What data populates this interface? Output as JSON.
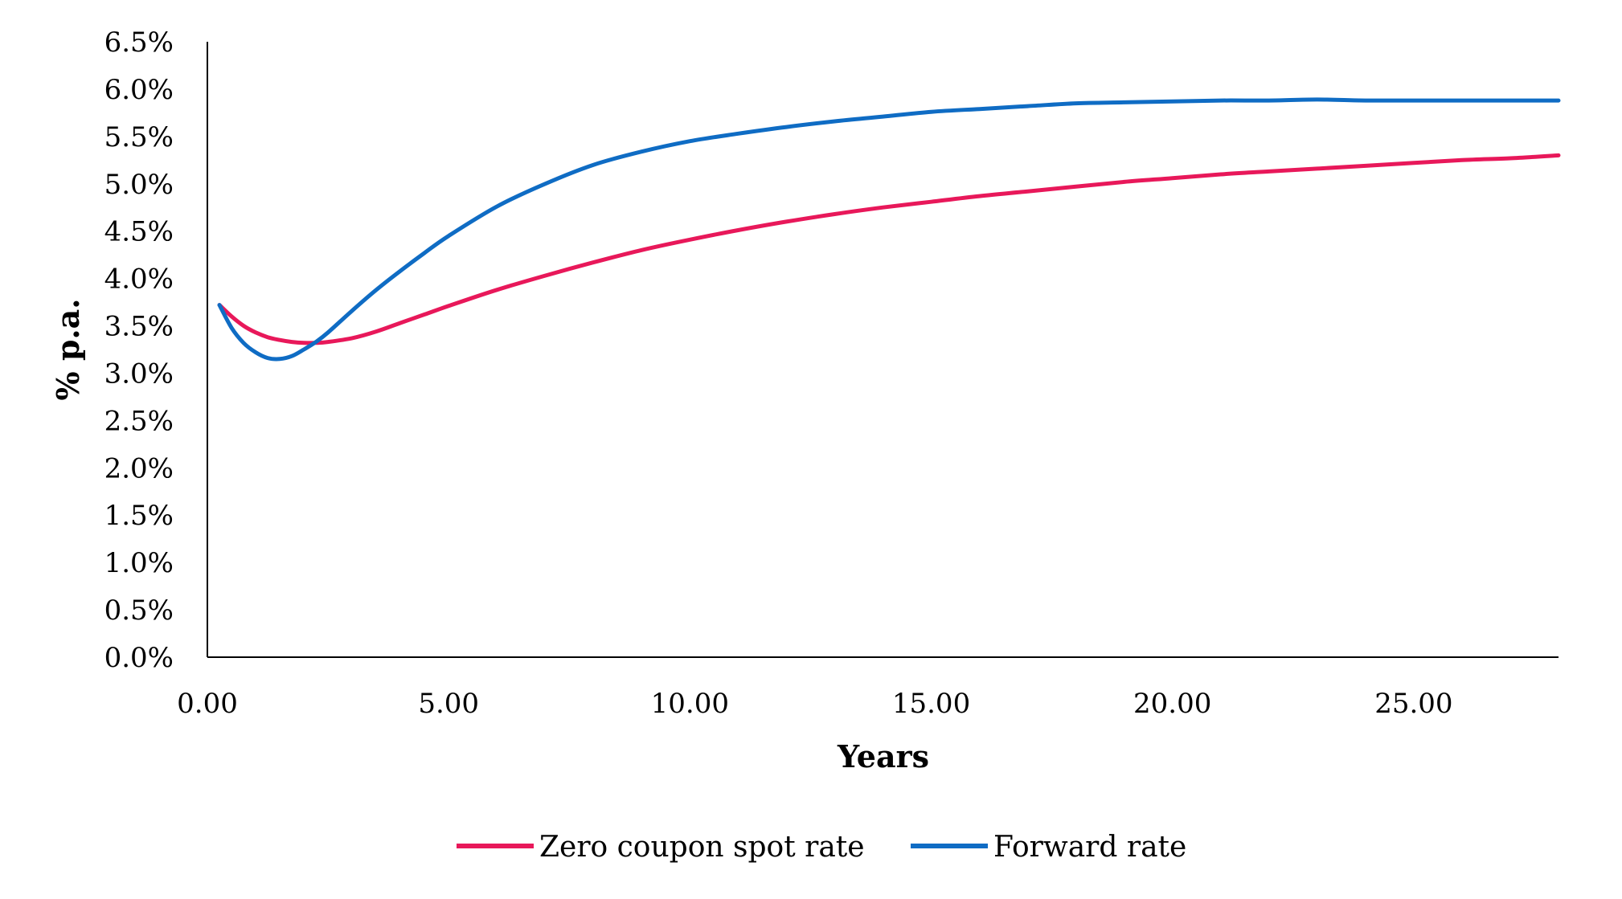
{
  "chart_data": {
    "type": "line",
    "title": "",
    "xlabel": "Years",
    "ylabel": "% p.a.",
    "xlim": [
      0,
      28.0
    ],
    "ylim": [
      0,
      6.5
    ],
    "x_ticks": [
      0,
      5,
      10,
      15,
      20,
      25
    ],
    "x_tick_labels": [
      "0.00",
      "5.00",
      "10.00",
      "15.00",
      "20.00",
      "25.00"
    ],
    "y_ticks": [
      0,
      0.5,
      1.0,
      1.5,
      2.0,
      2.5,
      3.0,
      3.5,
      4.0,
      4.5,
      5.0,
      5.5,
      6.0,
      6.5
    ],
    "y_tick_labels": [
      "0.0%",
      "0.5%",
      "1.0%",
      "1.5%",
      "2.0%",
      "2.5%",
      "3.0%",
      "3.5%",
      "4.0%",
      "4.5%",
      "5.0%",
      "5.5%",
      "6.0%",
      "6.5%"
    ],
    "grid": false,
    "legend_position": "bottom",
    "series": [
      {
        "name": "Zero coupon spot rate",
        "color": "#E8185A",
        "x": [
          0.25,
          0.5,
          0.75,
          1.0,
          1.25,
          1.5,
          1.75,
          2.0,
          2.25,
          2.5,
          3.0,
          3.5,
          4.0,
          4.5,
          5.0,
          6.0,
          7.0,
          8.0,
          9.0,
          10.0,
          11.0,
          12.0,
          13.0,
          14.0,
          15.0,
          16.0,
          17.0,
          18.0,
          19.0,
          20.0,
          21.0,
          22.0,
          23.0,
          24.0,
          25.0,
          26.0,
          27.0,
          28.0
        ],
        "y": [
          3.72,
          3.6,
          3.5,
          3.43,
          3.38,
          3.35,
          3.33,
          3.32,
          3.32,
          3.33,
          3.37,
          3.44,
          3.53,
          3.62,
          3.71,
          3.88,
          4.03,
          4.17,
          4.3,
          4.41,
          4.51,
          4.6,
          4.68,
          4.75,
          4.81,
          4.87,
          4.92,
          4.97,
          5.02,
          5.06,
          5.1,
          5.13,
          5.16,
          5.19,
          5.22,
          5.25,
          5.27,
          5.3
        ]
      },
      {
        "name": "Forward rate",
        "color": "#0F6CC4",
        "x": [
          0.25,
          0.5,
          0.75,
          1.0,
          1.25,
          1.5,
          1.75,
          2.0,
          2.25,
          2.5,
          3.0,
          3.5,
          4.0,
          4.5,
          5.0,
          6.0,
          7.0,
          8.0,
          9.0,
          10.0,
          11.0,
          12.0,
          13.0,
          14.0,
          15.0,
          16.0,
          17.0,
          18.0,
          19.0,
          20.0,
          21.0,
          22.0,
          23.0,
          24.0,
          25.0,
          26.0,
          27.0,
          28.0
        ],
        "y": [
          3.72,
          3.48,
          3.32,
          3.22,
          3.16,
          3.15,
          3.18,
          3.25,
          3.33,
          3.43,
          3.66,
          3.88,
          4.08,
          4.27,
          4.45,
          4.76,
          5.0,
          5.2,
          5.34,
          5.45,
          5.53,
          5.6,
          5.66,
          5.71,
          5.76,
          5.79,
          5.82,
          5.85,
          5.86,
          5.87,
          5.88,
          5.88,
          5.89,
          5.88,
          5.88,
          5.88,
          5.88,
          5.88
        ]
      }
    ]
  }
}
